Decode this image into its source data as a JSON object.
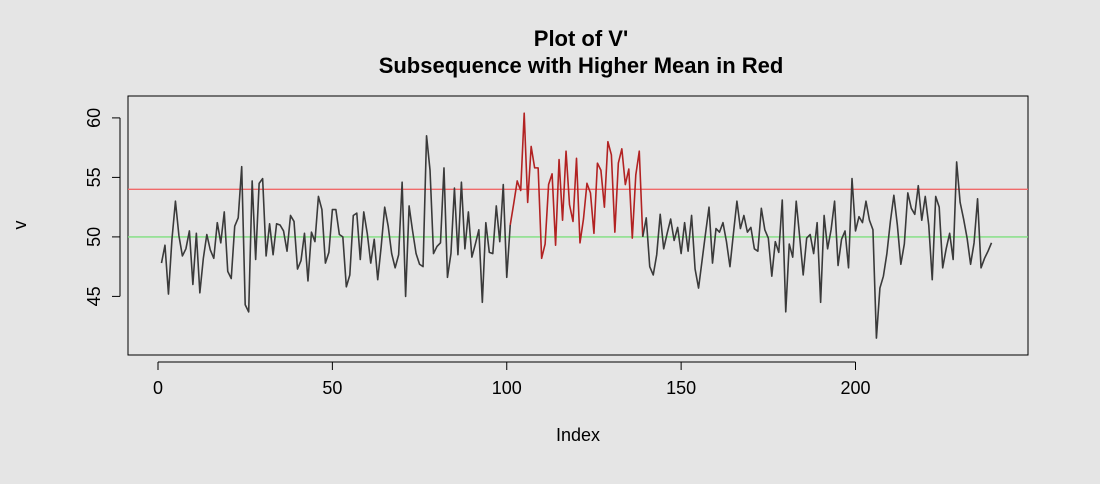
{
  "chart_data": {
    "type": "line",
    "title": "Plot of V'",
    "subtitle": "Subsequence with Higher Mean in Red",
    "xlabel": "Index",
    "ylabel": "v",
    "xlim": [
      0,
      240
    ],
    "ylim": [
      41,
      61
    ],
    "x_ticks": [
      0,
      50,
      100,
      150,
      200
    ],
    "y_ticks": [
      45,
      50,
      55,
      60
    ],
    "reference_lines": [
      {
        "y": 54,
        "color": "#f06a6a"
      },
      {
        "y": 50,
        "color": "#7fe07f"
      }
    ],
    "series": [
      {
        "color": "#3a3a3a",
        "x_start": 1,
        "values": [
          47.8,
          49.3,
          45.2,
          49.8,
          53.0,
          50.1,
          48.4,
          49.0,
          50.5,
          46.0,
          50.3,
          45.3,
          48.2,
          50.2,
          48.9,
          48.2,
          51.2,
          49.5,
          52.1,
          47.1,
          46.5,
          50.9,
          51.6,
          55.9,
          44.3,
          43.7,
          54.7,
          48.1,
          54.5,
          54.9,
          48.4,
          51.1,
          48.5,
          51.1,
          51.0,
          50.5,
          48.8,
          51.8,
          51.3,
          47.3,
          48.0,
          50.3,
          46.3,
          50.4,
          49.6,
          53.4,
          52.3,
          47.8,
          48.7,
          52.3,
          52.3,
          50.2,
          50.0,
          45.8,
          46.8,
          51.8,
          52.0,
          48.1,
          52.1,
          50.3,
          47.8,
          49.8,
          46.4,
          49.2,
          52.5,
          50.9,
          48.6,
          47.4,
          48.5,
          54.6,
          45.0,
          52.6,
          50.5,
          48.6,
          47.7,
          47.5,
          58.5,
          55.6,
          48.6,
          49.2,
          49.5,
          55.8,
          46.6,
          48.6,
          54.1,
          48.5,
          54.6,
          49.0,
          52.1,
          48.3,
          49.4,
          50.6,
          44.5,
          51.2,
          48.7,
          48.6,
          52.6,
          49.6,
          54.4,
          46.6,
          51.0
        ]
      },
      {
        "color": "#b22222",
        "x_start": 101,
        "values": [
          51.0,
          52.8,
          54.7,
          53.9,
          60.4,
          52.9,
          57.6,
          55.8,
          55.8,
          48.2,
          49.4,
          54.4,
          55.3,
          49.3,
          56.5,
          51.4,
          57.2,
          52.7,
          51.3,
          56.6,
          49.5,
          51.5,
          54.5,
          53.7,
          50.3,
          56.2,
          55.6,
          52.5,
          58.0,
          56.9,
          50.4,
          56.2,
          57.4,
          54.4,
          55.7,
          49.9,
          55.2,
          57.2,
          50.0
        ]
      },
      {
        "color": "#3a3a3a",
        "x_start": 139,
        "values": [
          50.0,
          51.6,
          47.5,
          46.8,
          48.5,
          51.9,
          49.0,
          50.3,
          51.5,
          49.7,
          50.8,
          48.6,
          51.2,
          48.8,
          51.8,
          47.3,
          45.7,
          48.0,
          50.3,
          52.5,
          47.8,
          50.7,
          50.4,
          51.2,
          49.6,
          47.5,
          50.3,
          53.0,
          50.7,
          51.8,
          50.4,
          50.8,
          49.0,
          48.8,
          52.4,
          50.6,
          49.9,
          46.7,
          49.6,
          48.7,
          53.1,
          43.7,
          49.4,
          48.3,
          53.0,
          50.0,
          46.8,
          49.9,
          50.2,
          48.6,
          51.2,
          44.5,
          51.8,
          49.0,
          50.6,
          53.0,
          47.6,
          49.8,
          50.5,
          47.4,
          54.9,
          50.5,
          51.7,
          51.2,
          53.0,
          51.4,
          50.6,
          41.5,
          45.7,
          46.7,
          48.6,
          51.3,
          53.5,
          51.0,
          47.7,
          49.4,
          53.7,
          52.4,
          51.9,
          54.3,
          51.4,
          53.4,
          51.0,
          46.4,
          53.4,
          52.5,
          47.4,
          49.0,
          50.3,
          48.1,
          56.3,
          52.9,
          51.5,
          49.9,
          47.7,
          49.5,
          53.2,
          47.4,
          48.2,
          48.8,
          49.5
        ]
      }
    ]
  }
}
